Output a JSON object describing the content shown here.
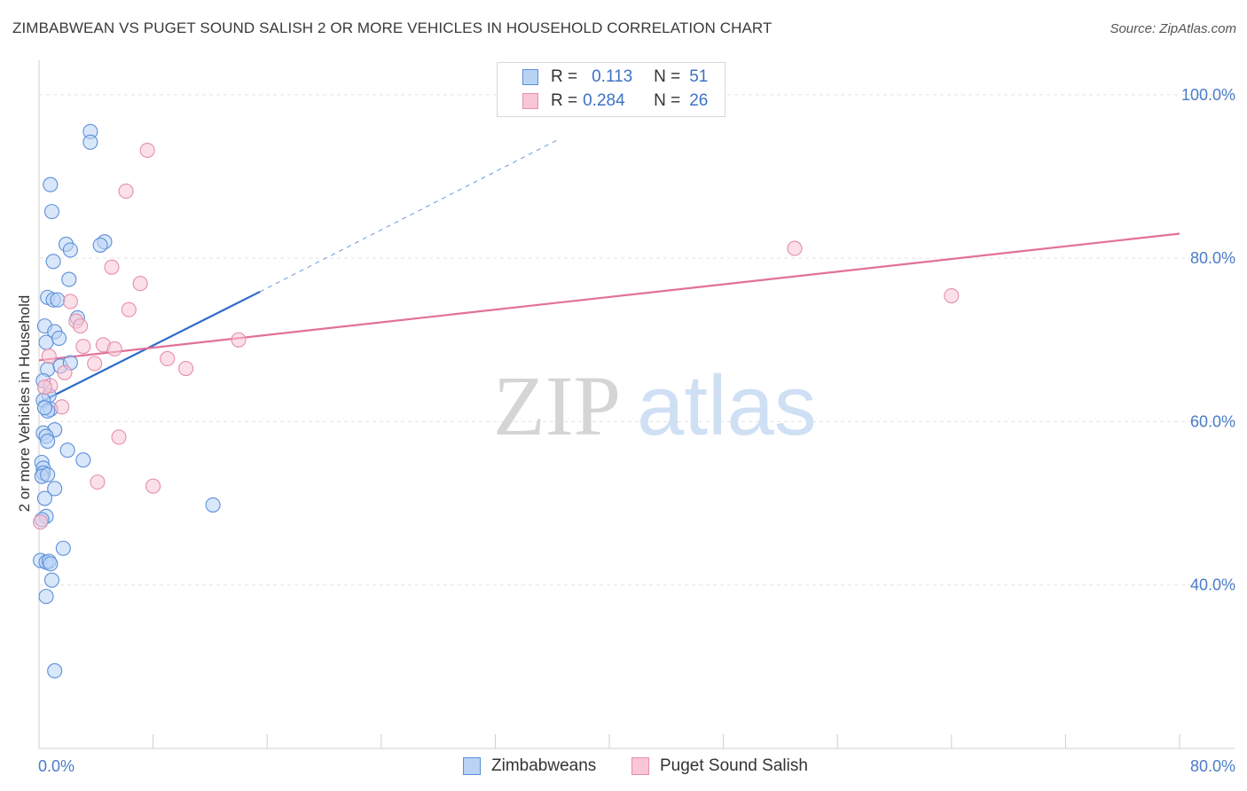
{
  "title": "ZIMBABWEAN VS PUGET SOUND SALISH 2 OR MORE VEHICLES IN HOUSEHOLD CORRELATION CHART",
  "source": "Source: ZipAtlas.com",
  "watermark": {
    "zip": "ZIP",
    "atlas": "atlas"
  },
  "legend": {
    "r_label": "R =",
    "n_label": "N =",
    "rows": [
      {
        "r": "0.113",
        "n": "51"
      },
      {
        "r": "0.284",
        "n": "26"
      }
    ]
  },
  "colors": {
    "zimbabwean_fill": "#b9d3f5",
    "zimbabwean_stroke": "#5b8fd8",
    "zimbabwean_line": "#2f6cc9",
    "salish_fill": "#f8c6d5",
    "salish_stroke": "#e58fab",
    "salish_line": "#e2709a",
    "tick_text": "#4a7cc9"
  },
  "chart_data": {
    "type": "scatter",
    "title": "ZIMBABWEAN VS PUGET SOUND SALISH 2 OR MORE VEHICLES IN HOUSEHOLD CORRELATION CHART",
    "xlabel": "",
    "ylabel": "2 or more Vehicles in Household",
    "xlim": [
      0,
      80
    ],
    "ylim": [
      20,
      104
    ],
    "x_tick_labels": [
      "0.0%",
      "80.0%"
    ],
    "y_ticks": [
      40,
      60,
      80,
      100
    ],
    "y_tick_labels": [
      "40.0%",
      "60.0%",
      "80.0%",
      "100.0%"
    ],
    "grid": true,
    "legend_position": "top-center",
    "series": [
      {
        "name": "Zimbabweans",
        "points": [
          [
            3.6,
            95.5
          ],
          [
            3.6,
            94.2
          ],
          [
            0.8,
            89.0
          ],
          [
            0.9,
            85.7
          ],
          [
            1.9,
            81.7
          ],
          [
            2.2,
            81.0
          ],
          [
            4.6,
            82.0
          ],
          [
            4.3,
            81.6
          ],
          [
            1.0,
            79.6
          ],
          [
            2.1,
            77.4
          ],
          [
            0.6,
            75.2
          ],
          [
            1.0,
            74.9
          ],
          [
            1.3,
            74.9
          ],
          [
            0.4,
            71.7
          ],
          [
            1.1,
            71.0
          ],
          [
            0.5,
            69.7
          ],
          [
            1.4,
            70.2
          ],
          [
            2.7,
            72.7
          ],
          [
            0.6,
            66.4
          ],
          [
            1.5,
            66.8
          ],
          [
            2.2,
            67.2
          ],
          [
            0.3,
            65.0
          ],
          [
            0.7,
            63.2
          ],
          [
            0.3,
            62.6
          ],
          [
            0.8,
            61.5
          ],
          [
            0.6,
            61.3
          ],
          [
            1.1,
            59.0
          ],
          [
            0.3,
            58.6
          ],
          [
            0.5,
            58.2
          ],
          [
            0.6,
            57.6
          ],
          [
            2.0,
            56.5
          ],
          [
            3.1,
            55.3
          ],
          [
            0.2,
            55.0
          ],
          [
            0.3,
            54.3
          ],
          [
            0.3,
            53.7
          ],
          [
            0.2,
            53.3
          ],
          [
            0.6,
            53.5
          ],
          [
            1.1,
            51.8
          ],
          [
            0.4,
            50.6
          ],
          [
            12.2,
            49.8
          ],
          [
            0.5,
            48.4
          ],
          [
            1.7,
            44.5
          ],
          [
            0.1,
            43.0
          ],
          [
            0.5,
            42.8
          ],
          [
            0.7,
            42.9
          ],
          [
            0.8,
            42.6
          ],
          [
            0.9,
            40.6
          ],
          [
            0.5,
            38.6
          ],
          [
            1.1,
            29.5
          ],
          [
            0.4,
            61.7
          ],
          [
            0.2,
            48.0
          ]
        ]
      },
      {
        "name": "Puget Sound Salish",
        "points": [
          [
            7.6,
            93.2
          ],
          [
            6.1,
            88.2
          ],
          [
            5.1,
            78.9
          ],
          [
            7.1,
            76.9
          ],
          [
            2.2,
            74.7
          ],
          [
            6.3,
            73.7
          ],
          [
            2.6,
            72.3
          ],
          [
            2.9,
            71.7
          ],
          [
            3.1,
            69.2
          ],
          [
            4.5,
            69.4
          ],
          [
            5.3,
            68.9
          ],
          [
            0.7,
            68.0
          ],
          [
            9.0,
            67.7
          ],
          [
            3.9,
            67.1
          ],
          [
            1.8,
            66.0
          ],
          [
            10.3,
            66.5
          ],
          [
            0.8,
            64.4
          ],
          [
            14.0,
            70.0
          ],
          [
            1.6,
            61.8
          ],
          [
            5.6,
            58.1
          ],
          [
            4.1,
            52.6
          ],
          [
            8.0,
            52.1
          ],
          [
            0.1,
            47.7
          ],
          [
            53.0,
            81.2
          ],
          [
            64.0,
            75.4
          ],
          [
            0.4,
            64.2
          ]
        ]
      }
    ],
    "trendlines": [
      {
        "series": "Zimbabweans",
        "solid": [
          [
            0,
            62.3
          ],
          [
            15.5,
            75.9
          ]
        ],
        "dashed": [
          [
            15.5,
            75.9
          ],
          [
            36.4,
            94.5
          ]
        ]
      },
      {
        "series": "Puget Sound Salish",
        "solid": [
          [
            0,
            67.5
          ],
          [
            80,
            83.0
          ]
        ]
      }
    ]
  },
  "bottom_legend": [
    "Zimbabweans",
    "Puget Sound Salish"
  ]
}
